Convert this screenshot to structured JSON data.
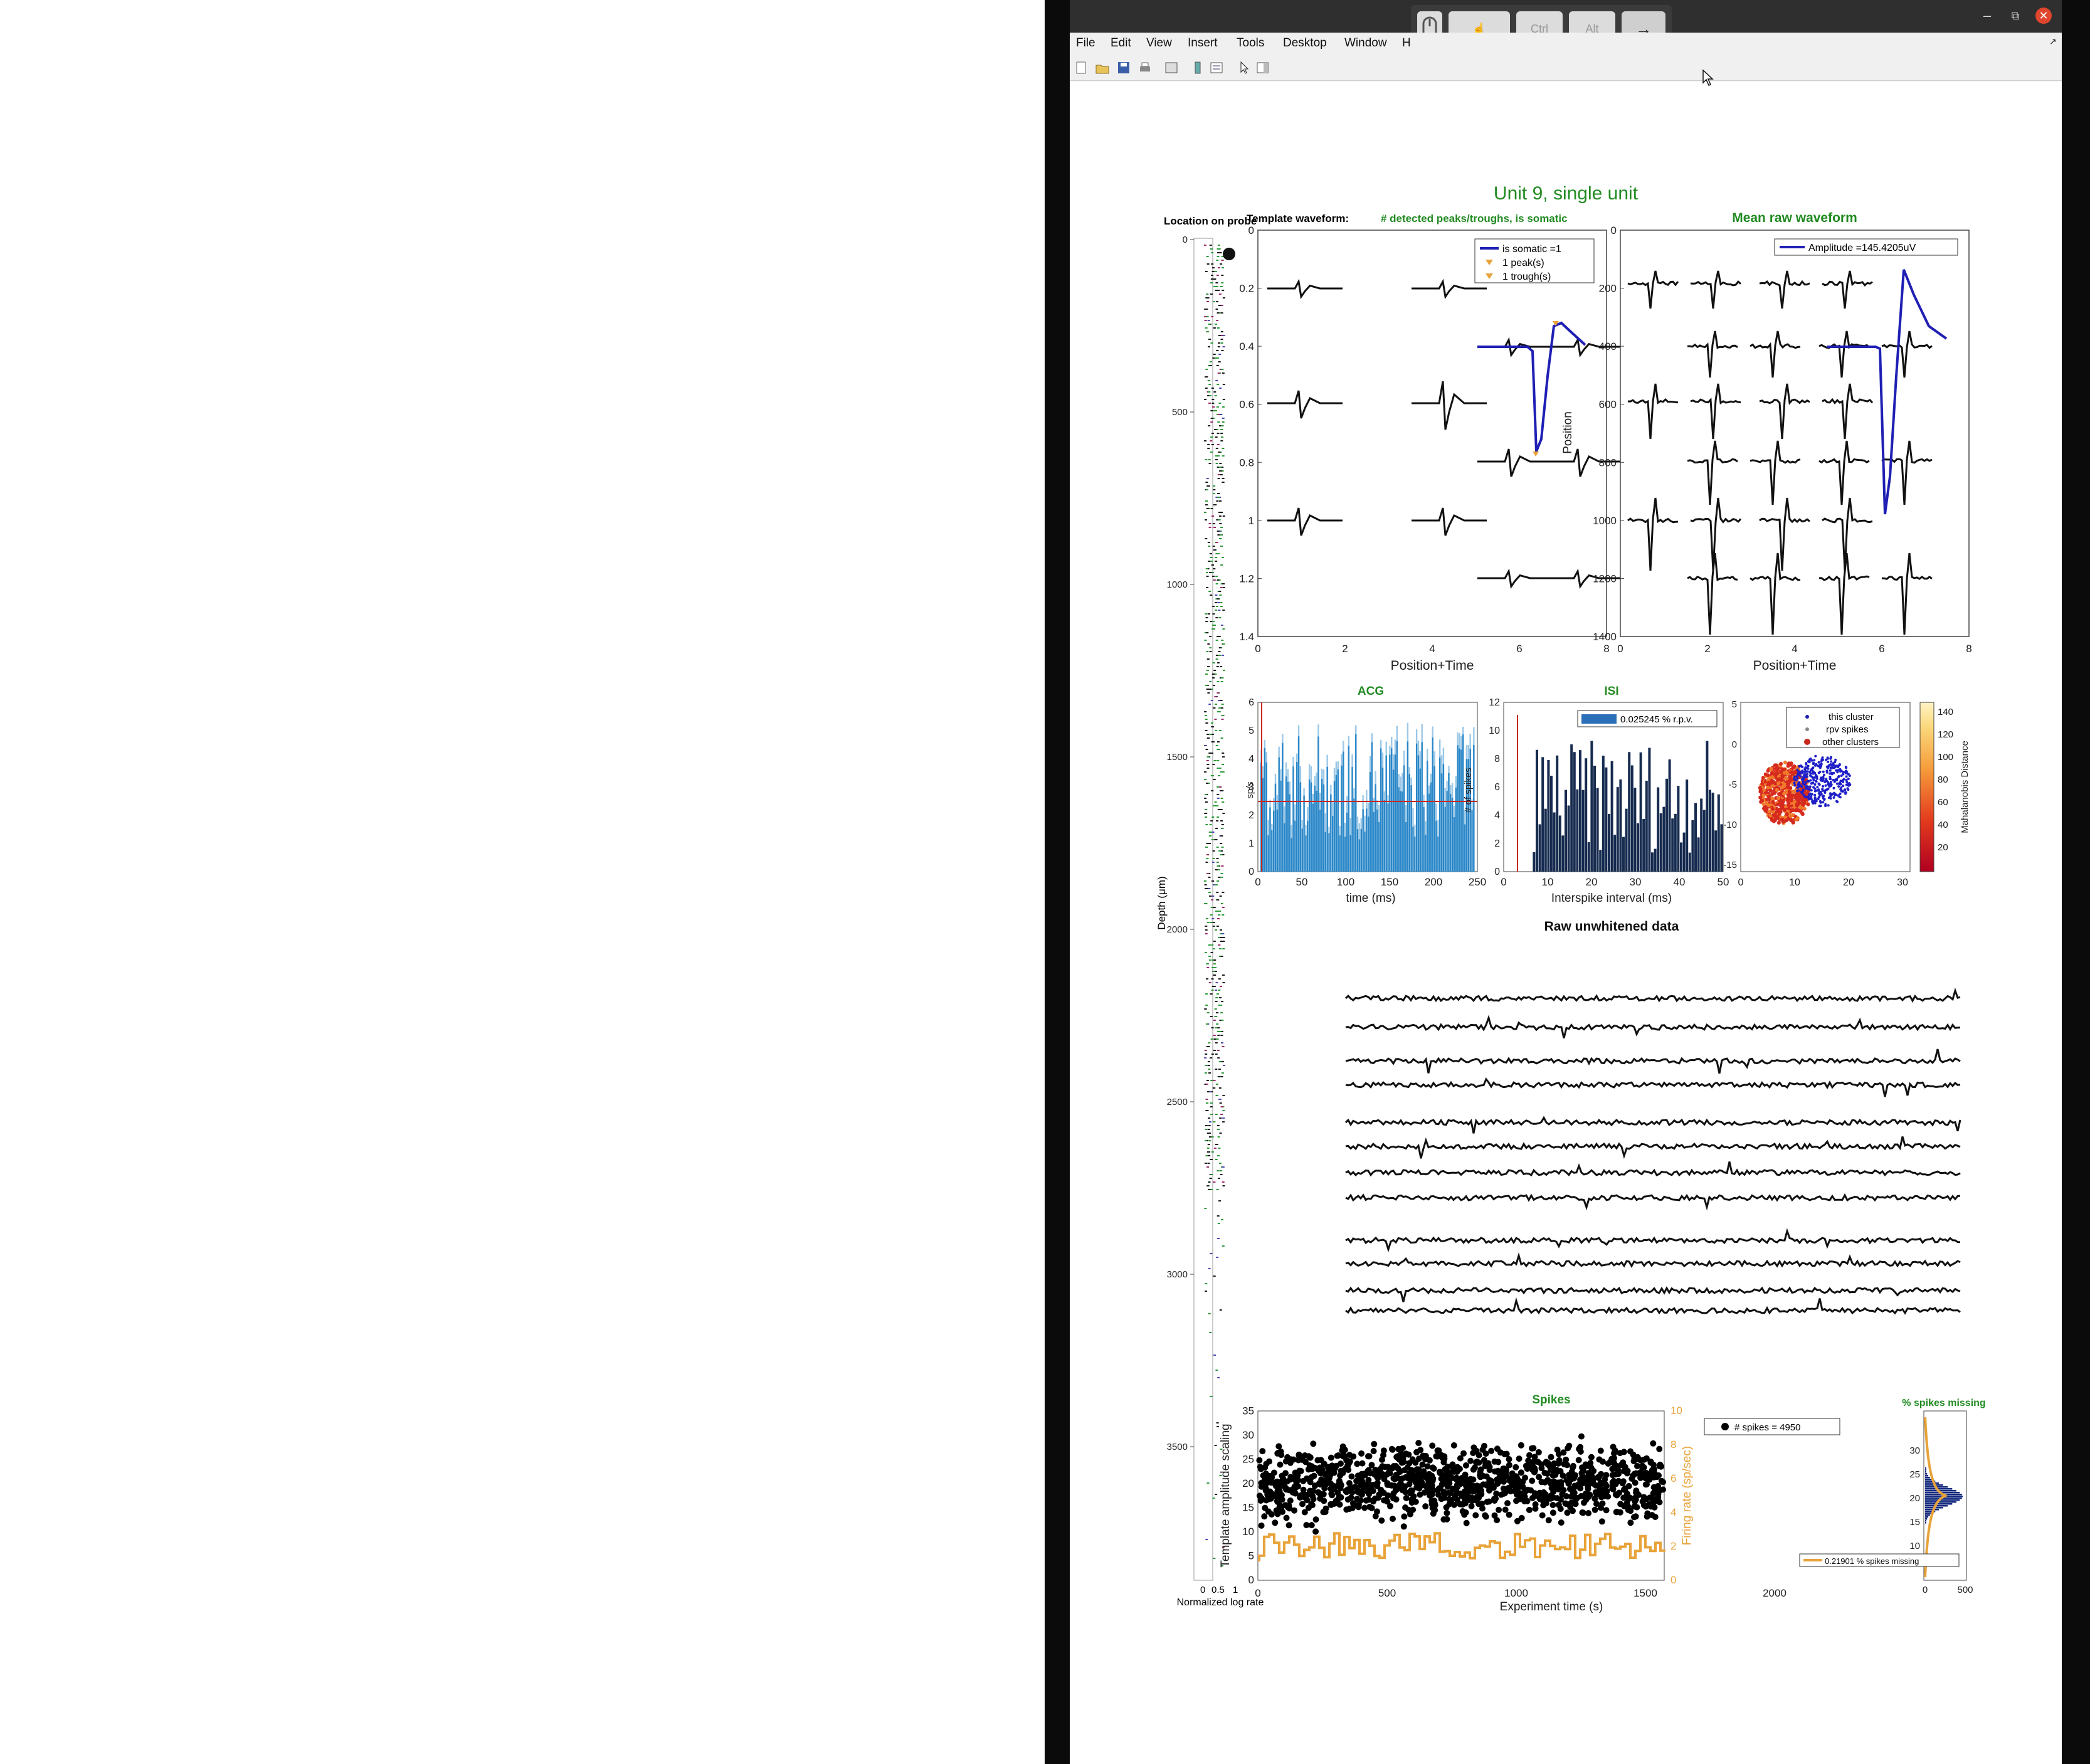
{
  "window": {
    "menus": [
      "File",
      "Edit",
      "View",
      "Insert",
      "Tools",
      "Desktop",
      "Window",
      "H"
    ],
    "controls": {
      "minimize": "–",
      "restore": "⧉",
      "close": "✕"
    },
    "overlay_keys": [
      "",
      "",
      "Ctrl",
      "Alt",
      "→"
    ]
  },
  "figure": {
    "main_title": "Unit 9, single unit",
    "probe_title": "Location on probe",
    "probe_ylabel": "Depth (μm)",
    "probe_xlabel": "Normalized log rate",
    "probe_yticks": [
      "0",
      "500",
      "1000",
      "1500",
      "2000",
      "2500",
      "3000",
      "3500"
    ],
    "probe_xticks": [
      "0",
      "0.5",
      "1"
    ],
    "template_title_black": "Template waveform:",
    "template_title_green": "# detected peaks/troughs, is somatic",
    "template_legend": [
      "is somatic =1",
      "1 peak(s)",
      "1 trough(s)"
    ],
    "template_xlabel": "Position+Time",
    "template_ylabel": "Position",
    "template_yticks": [
      "0",
      "0.2",
      "0.4",
      "0.6",
      "0.8",
      "1",
      "1.2",
      "1.4"
    ],
    "template_xticks": [
      "0",
      "2",
      "4",
      "6",
      "8"
    ],
    "raw_title": "Mean raw waveform",
    "raw_legend": "Amplitude =145.4205uV",
    "raw_xlabel": "Position+Time",
    "raw_yticks": [
      "0",
      "200",
      "400",
      "600",
      "800",
      "1000",
      "1200",
      "1400"
    ],
    "raw_xticks": [
      "0",
      "2",
      "4",
      "6",
      "8"
    ],
    "acg_title": "ACG",
    "acg_xlabel": "time (ms)",
    "acg_ylabel": "sp/s",
    "acg_yticks": [
      "0",
      "1",
      "2",
      "3",
      "4",
      "5",
      "6"
    ],
    "acg_xticks": [
      "0",
      "50",
      "100",
      "150",
      "200",
      "250"
    ],
    "isi_title": "ISI",
    "isi_legend": "0.025245 % r.p.v.",
    "isi_xlabel": "Interspike interval (ms)",
    "isi_ylabel": "# of spikes",
    "isi_yticks": [
      "0",
      "2",
      "4",
      "6",
      "8",
      "10",
      "12"
    ],
    "isi_xticks": [
      "0",
      "10",
      "20",
      "30",
      "40",
      "50"
    ],
    "cluster_legend": [
      "this cluster",
      "rpv spikes",
      "other clusters"
    ],
    "cluster_yticks": [
      "5",
      "0",
      "-5",
      "-10",
      "-15"
    ],
    "cluster_xticks": [
      "0",
      "10",
      "20",
      "30"
    ],
    "colorbar_label": "Mahalanobis Distance",
    "colorbar_ticks": [
      "140",
      "120",
      "100",
      "80",
      "60",
      "40",
      "20"
    ],
    "rawdata_title": "Raw unwhitened data",
    "spikes_title": "Spikes",
    "spikes_legend": "# spikes = 4950",
    "spikes_xlabel": "Experiment time (s)",
    "spikes_ylabel": "Template amplitude scaling",
    "spikes_ylabel_right": "Firing rate (sp/sec)",
    "spikes_yticks": [
      "0",
      "5",
      "10",
      "15",
      "20",
      "25",
      "30",
      "35"
    ],
    "spikes_yticks_right": [
      "0",
      "2",
      "4",
      "6",
      "8",
      "10"
    ],
    "spikes_xticks": [
      "0",
      "500",
      "1000",
      "1500",
      "2000"
    ],
    "missing_title": "% spikes missing",
    "missing_legend": "0.21901 % spikes missing",
    "missing_yticks": [
      "10",
      "15",
      "20",
      "25",
      "30"
    ],
    "missing_xticks": [
      "0",
      "500"
    ],
    "colors": {
      "green": "#228b22",
      "somatic_blue": "#1f1fb4",
      "acg_blue": "#2a87c8",
      "isi_navy": "#162b4f",
      "firing_orange": "#e8a33a",
      "rpv_red": "#c8281e"
    }
  }
}
